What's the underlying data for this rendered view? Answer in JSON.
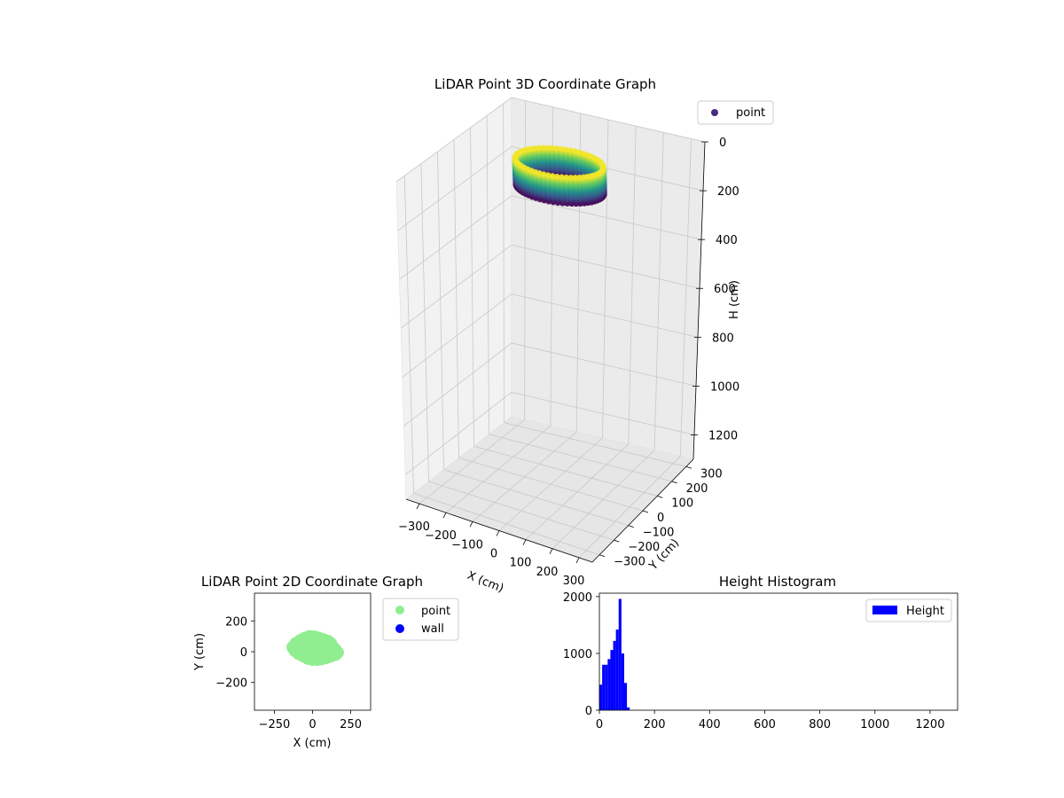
{
  "chart_data": [
    {
      "id": "lidar-3d",
      "type": "scatter",
      "projection": "3d",
      "title": "LiDAR Point 3D Coordinate Graph",
      "xlabel": "X (cm)",
      "ylabel": "Y (cm)",
      "zlabel": "H (cm)",
      "x_ticks": [
        "−300",
        "−200",
        "−100",
        "0",
        "100",
        "200",
        "300"
      ],
      "y_ticks": [
        "−300",
        "−200",
        "−100",
        "0",
        "100",
        "200",
        "300"
      ],
      "z_ticks": [
        "0",
        "200",
        "400",
        "600",
        "800",
        "1000",
        "1200"
      ],
      "xlim": [
        -350,
        350
      ],
      "ylim": [
        -350,
        350
      ],
      "zlim": [
        0,
        1300
      ],
      "z_inverted": true,
      "grid": true,
      "legend": {
        "placement": "top-right",
        "entries": [
          {
            "label": "point",
            "color": "#472c7a"
          }
        ]
      },
      "colormap": "viridis",
      "point_cloud": {
        "x_range": [
          -130,
          180
        ],
        "y_range": [
          -90,
          110
        ],
        "h_range": [
          0,
          110
        ]
      }
    },
    {
      "id": "lidar-2d",
      "type": "scatter",
      "title": "LiDAR Point 2D Coordinate Graph",
      "xlabel": "X (cm)",
      "ylabel": "Y (cm)",
      "x_ticks": [
        "−250",
        "0",
        "250"
      ],
      "y_ticks": [
        "200",
        "0",
        "−200"
      ],
      "xlim": [
        -380,
        380
      ],
      "ylim": [
        -380,
        380
      ],
      "grid": false,
      "legend": {
        "placement": "outside-right",
        "entries": [
          {
            "label": "point",
            "color": "#90ee90"
          },
          {
            "label": "wall",
            "color": "#0000ff"
          }
        ]
      },
      "series": [
        {
          "name": "point",
          "color": "#90ee90",
          "points": [
            [
              -130,
              30
            ],
            [
              -110,
              55
            ],
            [
              -80,
              75
            ],
            [
              -50,
              90
            ],
            [
              -20,
              100
            ],
            [
              10,
              98
            ],
            [
              40,
              90
            ],
            [
              70,
              80
            ],
            [
              100,
              70
            ],
            [
              120,
              55
            ],
            [
              130,
              35
            ],
            [
              150,
              15
            ],
            [
              165,
              -5
            ],
            [
              150,
              -20
            ],
            [
              120,
              -30
            ],
            [
              90,
              -40
            ],
            [
              60,
              -48
            ],
            [
              30,
              -52
            ],
            [
              0,
              -52
            ],
            [
              -30,
              -45
            ],
            [
              -60,
              -30
            ],
            [
              -90,
              -15
            ],
            [
              -115,
              5
            ],
            [
              -125,
              20
            ],
            [
              -90,
              20
            ],
            [
              -50,
              30
            ],
            [
              0,
              40
            ],
            [
              50,
              30
            ],
            [
              90,
              10
            ],
            [
              -20,
              -10
            ],
            [
              30,
              0
            ],
            [
              -60,
              50
            ],
            [
              60,
              60
            ]
          ]
        },
        {
          "name": "wall",
          "color": "#0000ff",
          "points": []
        }
      ]
    },
    {
      "id": "height-hist",
      "type": "bar",
      "title": "Height Histogram",
      "xlabel": "",
      "ylabel": "",
      "x_ticks": [
        "0",
        "200",
        "400",
        "600",
        "800",
        "1000",
        "1200"
      ],
      "y_ticks": [
        "0",
        "1000",
        "2000"
      ],
      "xlim": [
        0,
        1300
      ],
      "ylim": [
        0,
        2060
      ],
      "grid": false,
      "legend": {
        "placement": "top-right",
        "entries": [
          {
            "label": "Height",
            "color": "#0000ff"
          }
        ]
      },
      "bin_width": 10,
      "series": [
        {
          "name": "Height",
          "color": "#0000ff",
          "bins": [
            [
              0,
              450
            ],
            [
              10,
              800
            ],
            [
              20,
              800
            ],
            [
              30,
              900
            ],
            [
              40,
              1060
            ],
            [
              50,
              1220
            ],
            [
              60,
              1420
            ],
            [
              70,
              1960
            ],
            [
              80,
              1000
            ],
            [
              90,
              480
            ],
            [
              100,
              50
            ]
          ]
        }
      ]
    }
  ]
}
